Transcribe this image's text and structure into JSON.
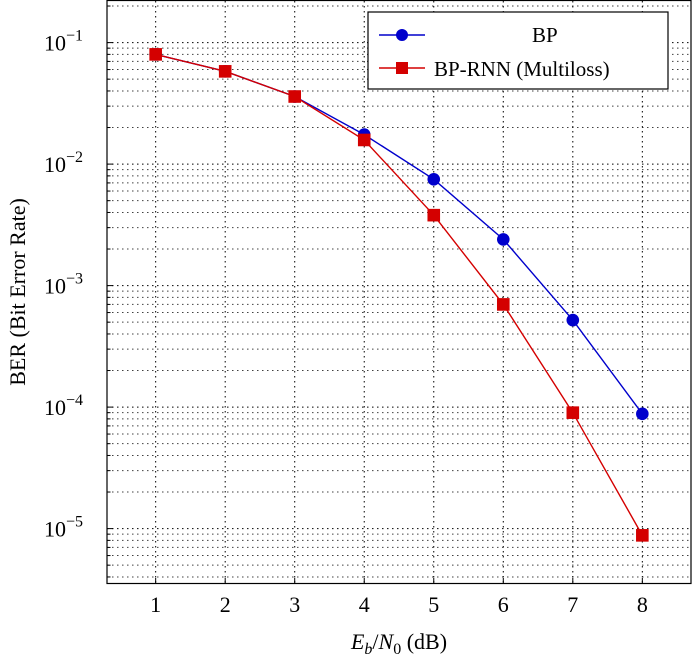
{
  "chart_data": {
    "type": "line",
    "x": [
      1,
      2,
      3,
      4,
      5,
      6,
      7,
      8
    ],
    "xticks": [
      "1",
      "2",
      "3",
      "4",
      "5",
      "6",
      "7",
      "8"
    ],
    "yticks": [
      {
        "base": "10",
        "exp": "−1",
        "value": 0.1
      },
      {
        "base": "10",
        "exp": "−2",
        "value": 0.01
      },
      {
        "base": "10",
        "exp": "−3",
        "value": 0.001
      },
      {
        "base": "10",
        "exp": "−4",
        "value": 0.0001
      },
      {
        "base": "10",
        "exp": "−5",
        "value": 1e-05
      }
    ],
    "yscale": "log",
    "xlim": [
      0.3,
      8.7
    ],
    "ylim": [
      3.5e-06,
      0.22
    ],
    "xlabel": {
      "e": "E",
      "b": "b",
      "slash": "/",
      "n": "N",
      "zero": "0",
      "unit": " (dB)"
    },
    "ylabel": "BER (Bit Error Rate)",
    "grid": true,
    "legend_position": "top-right",
    "series": [
      {
        "name": "BP",
        "color": "#0000cc",
        "marker": "circle",
        "values": [
          0.08,
          0.058,
          0.036,
          0.0175,
          0.0075,
          0.0024,
          0.00052,
          8.8e-05
        ]
      },
      {
        "name": "BP-RNN (Multiloss)",
        "color": "#d40000",
        "marker": "square",
        "values": [
          0.08,
          0.058,
          0.036,
          0.0158,
          0.0038,
          0.0007,
          9e-05,
          8.8e-06
        ]
      }
    ]
  }
}
